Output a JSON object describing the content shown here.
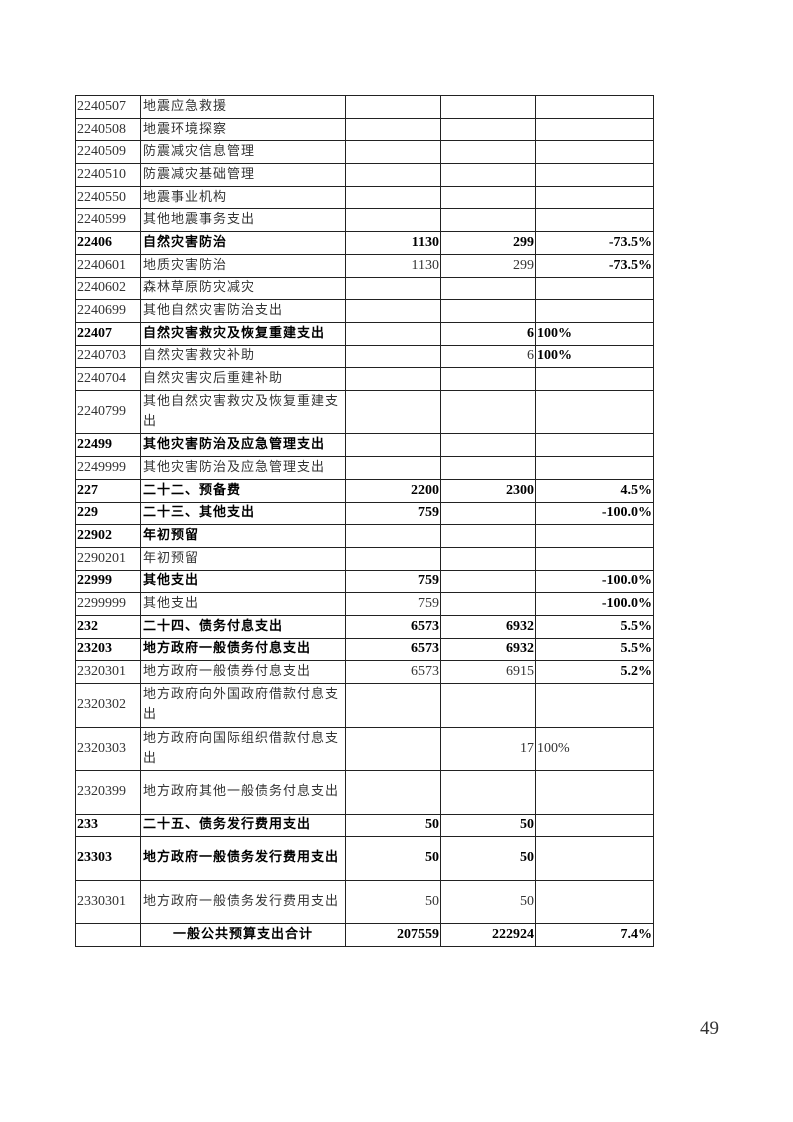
{
  "rows": [
    {
      "code": "2240507",
      "name": "地震应急救援",
      "a": "",
      "b": "",
      "c": "",
      "bold": false
    },
    {
      "code": "2240508",
      "name": "地震环境探察",
      "a": "",
      "b": "",
      "c": "",
      "bold": false
    },
    {
      "code": "2240509",
      "name": "防震减灾信息管理",
      "a": "",
      "b": "",
      "c": "",
      "bold": false
    },
    {
      "code": "2240510",
      "name": "防震减灾基础管理",
      "a": "",
      "b": "",
      "c": "",
      "bold": false
    },
    {
      "code": "2240550",
      "name": "地震事业机构",
      "a": "",
      "b": "",
      "c": "",
      "bold": false
    },
    {
      "code": "2240599",
      "name": "其他地震事务支出",
      "a": "",
      "b": "",
      "c": "",
      "bold": false
    },
    {
      "code": "22406",
      "name": "自然灾害防治",
      "a": "1130",
      "b": "299",
      "c": "-73.5%",
      "bold": true
    },
    {
      "code": "2240601",
      "name": "地质灾害防治",
      "a": "1130",
      "b": "299",
      "c": "-73.5%",
      "bold": false,
      "boldc": true
    },
    {
      "code": "2240602",
      "name": "森林草原防灾减灾",
      "a": "",
      "b": "",
      "c": "",
      "bold": false
    },
    {
      "code": "2240699",
      "name": "其他自然灾害防治支出",
      "a": "",
      "b": "",
      "c": "",
      "bold": false
    },
    {
      "code": "22407",
      "name": "自然灾害救灾及恢复重建支出",
      "a": "",
      "b": "6",
      "c": "100%",
      "bold": true,
      "cleft": true
    },
    {
      "code": "2240703",
      "name": "自然灾害救灾补助",
      "a": "",
      "b": "6",
      "c": "100%",
      "bold": false,
      "cleft": true,
      "boldc": true
    },
    {
      "code": "2240704",
      "name": "自然灾害灾后重建补助",
      "a": "",
      "b": "",
      "c": "",
      "bold": false
    },
    {
      "code": "2240799",
      "name": "其他自然灾害救灾及恢复重建支出",
      "a": "",
      "b": "",
      "c": "",
      "bold": false,
      "double": true
    },
    {
      "code": "22499",
      "name": "其他灾害防治及应急管理支出",
      "a": "",
      "b": "",
      "c": "",
      "bold": true
    },
    {
      "code": "2249999",
      "name": "其他灾害防治及应急管理支出",
      "a": "",
      "b": "",
      "c": "",
      "bold": false
    },
    {
      "code": "227",
      "name": "二十二、预备费",
      "a": "2200",
      "b": "2300",
      "c": "4.5%",
      "bold": true
    },
    {
      "code": "229",
      "name": "二十三、其他支出",
      "a": "759",
      "b": "",
      "c": "-100.0%",
      "bold": true
    },
    {
      "code": "22902",
      "name": "年初预留",
      "a": "",
      "b": "",
      "c": "",
      "bold": true
    },
    {
      "code": "2290201",
      "name": "年初预留",
      "a": "",
      "b": "",
      "c": "",
      "bold": false
    },
    {
      "code": "22999",
      "name": "其他支出",
      "a": "759",
      "b": "",
      "c": "-100.0%",
      "bold": true
    },
    {
      "code": "2299999",
      "name": "其他支出",
      "a": "759",
      "b": "",
      "c": "-100.0%",
      "bold": false,
      "boldc": true
    },
    {
      "code": "232",
      "name": "二十四、债务付息支出",
      "a": "6573",
      "b": "6932",
      "c": "5.5%",
      "bold": true
    },
    {
      "code": "23203",
      "name": "地方政府一般债务付息支出",
      "a": "6573",
      "b": "6932",
      "c": "5.5%",
      "bold": true
    },
    {
      "code": "2320301",
      "name": "地方政府一般债券付息支出",
      "a": "6573",
      "b": "6915",
      "c": "5.2%",
      "bold": false,
      "boldc": true
    },
    {
      "code": "2320302",
      "name": "地方政府向外国政府借款付息支出",
      "a": "",
      "b": "",
      "c": "",
      "bold": false,
      "double": true
    },
    {
      "code": "2320303",
      "name": "地方政府向国际组织借款付息支出",
      "a": "",
      "b": "17",
      "c": "100%",
      "bold": false,
      "double": true,
      "cleft": true
    },
    {
      "code": "2320399",
      "name": "地方政府其他一般债务付息支出",
      "a": "",
      "b": "",
      "c": "",
      "bold": false,
      "double": true
    },
    {
      "code": "233",
      "name": "二十五、债务发行费用支出",
      "a": "50",
      "b": "50",
      "c": "",
      "bold": true
    },
    {
      "code": "23303",
      "name": "地方政府一般债务发行费用支出",
      "a": "50",
      "b": "50",
      "c": "",
      "bold": true,
      "double": true
    },
    {
      "code": "2330301",
      "name": "地方政府一般债务发行费用支出",
      "a": "50",
      "b": "50",
      "c": "",
      "bold": false,
      "double": true
    }
  ],
  "total": {
    "code": "",
    "name": "一般公共预算支出合计",
    "a": "207559",
    "b": "222924",
    "c": "7.4%"
  },
  "page_number": "49"
}
